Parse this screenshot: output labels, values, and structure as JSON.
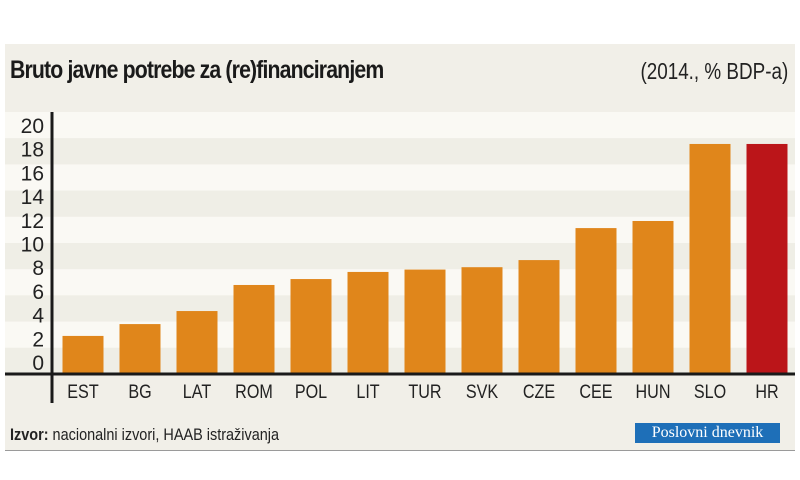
{
  "chart_data": {
    "type": "bar",
    "title": "Bruto javne potrebe za (re)financiranjem",
    "subtitle": "(2014., % BDP-a)",
    "categories": [
      "EST",
      "BG",
      "LAT",
      "ROM",
      "POL",
      "LIT",
      "TUR",
      "SVK",
      "CZE",
      "CEE",
      "HUN",
      "SLO",
      "HR"
    ],
    "values": [
      2.2,
      3.2,
      4.3,
      6.5,
      7.0,
      7.6,
      7.8,
      8.0,
      8.6,
      11.3,
      11.9,
      18.4,
      18.4
    ],
    "ylim": [
      0,
      20
    ],
    "yticks": [
      0,
      2,
      4,
      6,
      8,
      10,
      12,
      14,
      16,
      18,
      20
    ],
    "grid": "alternating horizontal bands",
    "colors": {
      "default": "#e0861b",
      "highlight": "#bb1519",
      "highlight_category": "HR"
    }
  },
  "source": {
    "label": "Izvor:",
    "text": " nacionalni izvori, HAAB istraživanja"
  },
  "logo": "Poslovni dnevnik"
}
